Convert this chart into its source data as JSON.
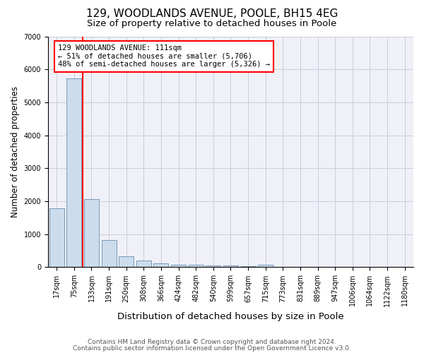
{
  "title": "129, WOODLANDS AVENUE, POOLE, BH15 4EG",
  "subtitle": "Size of property relative to detached houses in Poole",
  "xlabel": "Distribution of detached houses by size in Poole",
  "ylabel": "Number of detached properties",
  "categories": [
    "17sqm",
    "75sqm",
    "133sqm",
    "191sqm",
    "250sqm",
    "308sqm",
    "366sqm",
    "424sqm",
    "482sqm",
    "540sqm",
    "599sqm",
    "657sqm",
    "715sqm",
    "773sqm",
    "831sqm",
    "889sqm",
    "947sqm",
    "1006sqm",
    "1064sqm",
    "1122sqm",
    "1180sqm"
  ],
  "values": [
    1780,
    5720,
    2060,
    820,
    340,
    200,
    110,
    80,
    65,
    55,
    45,
    40,
    80,
    0,
    0,
    0,
    0,
    0,
    0,
    0,
    0
  ],
  "bar_color": "#ccdcec",
  "bar_edge_color": "#7799bb",
  "annotation_text": "129 WOODLANDS AVENUE: 111sqm\n← 51% of detached houses are smaller (5,706)\n48% of semi-detached houses are larger (5,326) →",
  "annotation_box_color": "white",
  "annotation_box_edge_color": "red",
  "ylim": [
    0,
    7000
  ],
  "yticks": [
    0,
    1000,
    2000,
    3000,
    4000,
    5000,
    6000,
    7000
  ],
  "footnote1": "Contains HM Land Registry data © Crown copyright and database right 2024.",
  "footnote2": "Contains public sector information licensed under the Open Government Licence v3.0.",
  "bg_color": "#f0f0f8",
  "grid_color": "#ccccdd",
  "title_fontsize": 11,
  "subtitle_fontsize": 9.5,
  "tick_fontsize": 7,
  "ylabel_fontsize": 8.5,
  "xlabel_fontsize": 9.5,
  "footnote_fontsize": 6.5
}
